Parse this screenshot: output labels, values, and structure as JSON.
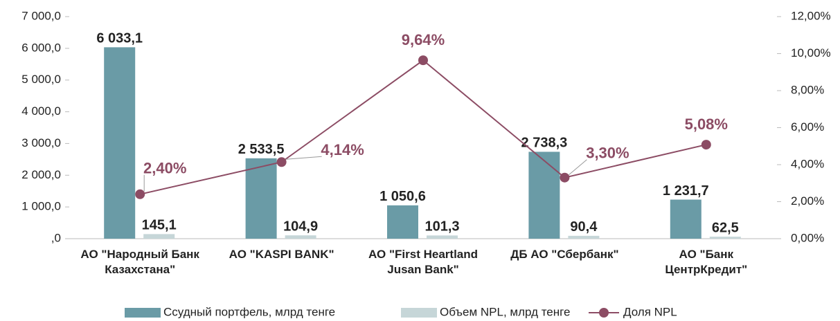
{
  "chart_data": {
    "type": "bar",
    "categories": [
      "АО \"Народный Банк Казахстана\"",
      "АО \"KASPI BANK\"",
      "АО \"First Heartland Jusan Bank\"",
      "ДБ АО \"Сбербанк\"",
      "АО  \"Банк ЦентрКредит\""
    ],
    "series": [
      {
        "name": "Ссудный портфель, млрд тенге",
        "color": "#6a9ba6",
        "type": "bar",
        "values": [
          6033.1,
          2533.5,
          1050.6,
          2738.3,
          1231.7
        ],
        "value_labels": [
          "6 033,1",
          "2 533,5",
          "1 050,6",
          "2 738,3",
          "1 231,7"
        ]
      },
      {
        "name": "Объем NPL, млрд тенге",
        "color": "#c6d6d8",
        "type": "bar",
        "values": [
          145.1,
          104.9,
          101.3,
          90.4,
          62.5
        ],
        "value_labels": [
          "145,1",
          "104,9",
          "101,3",
          "90,4",
          "62,5"
        ]
      },
      {
        "name": "Доля NPL",
        "color": "#8c4c64",
        "type": "line",
        "axis": "y2",
        "values": [
          2.4,
          4.14,
          9.64,
          3.3,
          5.08
        ],
        "value_labels": [
          "2,40%",
          "4,14%",
          "9,64%",
          "3,30%",
          "5,08%"
        ]
      }
    ],
    "ylim": [
      0,
      7000
    ],
    "yticks": [
      {
        "value": 0,
        "label": ",0"
      },
      {
        "value": 1000,
        "label": "1 000,0"
      },
      {
        "value": 2000,
        "label": "2 000,0"
      },
      {
        "value": 3000,
        "label": "3 000,0"
      },
      {
        "value": 4000,
        "label": "4 000,0"
      },
      {
        "value": 5000,
        "label": "5 000,0"
      },
      {
        "value": 6000,
        "label": "6 000,0"
      },
      {
        "value": 7000,
        "label": "7 000,0"
      }
    ],
    "y2lim": [
      0,
      12
    ],
    "y2ticks": [
      {
        "value": 0,
        "label": "0,00%"
      },
      {
        "value": 2,
        "label": "2,00%"
      },
      {
        "value": 4,
        "label": "4,00%"
      },
      {
        "value": 6,
        "label": "6,00%"
      },
      {
        "value": 8,
        "label": "8,00%"
      },
      {
        "value": 10,
        "label": "10,00%"
      },
      {
        "value": 12,
        "label": "12,00%"
      }
    ],
    "legend": "bottom"
  }
}
